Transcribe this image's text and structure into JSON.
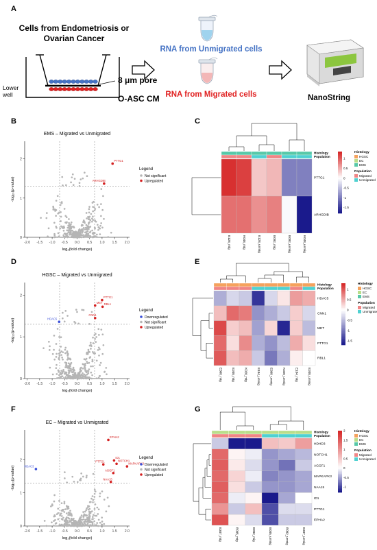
{
  "panel_a": {
    "letter": "A",
    "cells_line1": "Cells from Endometriosis or",
    "cells_line2": "Ovarian Cancer",
    "pore_label": "8 μm pore",
    "lower_well_line1": "Lower",
    "lower_well_line2": "well",
    "cm_label": "O-ASC CM",
    "rna_unmigrated": "RNA from Unmigrated cells",
    "rna_migrated": "RNA from Migrated cells",
    "nanostring_label": "NanoString",
    "colors": {
      "unmigrated": "#4472c4",
      "migrated": "#e02020"
    }
  },
  "volcano_common": {
    "ylabel": "-log₁₀(p-value)",
    "xlabel": "log₂(fold change)",
    "legend_title": "Legend",
    "legend_down": "Downregulated",
    "legend_ns": "Not significant",
    "legend_up": "Upregulated",
    "x_ticks": [
      "-2.0",
      "-1.5",
      "-1.0",
      "-0.5",
      "0.0",
      "0.5",
      "1.0",
      "1.5",
      "2.0"
    ],
    "colors": {
      "down": "#3a4fd8",
      "ns": "#b5b5b5",
      "up": "#d42020"
    }
  },
  "heat_common": {
    "histology_label": "Histology",
    "population_label": "Population",
    "legend_histology_title": "Histology",
    "legend_population_title": "Population",
    "hist_items": [
      "HGSC",
      "EC",
      "EMS"
    ],
    "pop_items": [
      "Migrated",
      "Unmigrated"
    ],
    "colors": {
      "HGSC": "#f5a25d",
      "EC": "#b9de8a",
      "EMS": "#57c8a8",
      "Migrated": "#f08585",
      "Unmigrated": "#4fd1d1",
      "high": "#d62828",
      "mid": "#ffffff",
      "low": "#1a1a8c"
    }
  },
  "panel_b": {
    "letter": "B"
  },
  "panel_c": {
    "letter": "C"
  },
  "panel_d": {
    "letter": "D"
  },
  "panel_e": {
    "letter": "E"
  },
  "panel_f": {
    "letter": "F"
  },
  "panel_g": {
    "letter": "G"
  },
  "chart_data": [
    {
      "type": "scatter",
      "panel": "B",
      "title": "EMS – Migrated vs Unmigrated",
      "xlim": [
        -2.1,
        2.1
      ],
      "ylim": [
        0,
        2.45
      ],
      "y_ticks": [
        0,
        1,
        2
      ],
      "thresholds": {
        "x": [
          -0.7,
          0.7
        ],
        "y": 1.3
      },
      "labeled_points": [
        {
          "label": "PTTG1",
          "x": 1.42,
          "y": 1.88,
          "class": "up"
        },
        {
          "label": "ARHGDIB",
          "x": 1.08,
          "y": 1.37,
          "class": "up"
        }
      ],
      "legend_items": [
        "Not significant",
        "Upregulated"
      ]
    },
    {
      "type": "heatmap",
      "panel": "C",
      "columns": [
        "E128_mig",
        "K048_mig",
        "E128_unmig",
        "E092_mig",
        "E092_unmig",
        "K048_unmig"
      ],
      "histology": [
        "EMS",
        "EMS",
        "EMS",
        "EMS",
        "EMS",
        "EMS"
      ],
      "population": [
        "Migrated",
        "Migrated",
        "Unmigrated",
        "Migrated",
        "Unmigrated",
        "Unmigrated"
      ],
      "rows": [
        "PTTG1",
        "ARHGDIB"
      ],
      "values": [
        [
          1.3,
          1.2,
          0.35,
          0.45,
          -1.0,
          -1.0
        ],
        [
          0.9,
          0.9,
          0.7,
          0.8,
          -0.05,
          -1.8
        ]
      ],
      "scale_ticks": [
        1,
        0.5,
        0,
        -0.5,
        -1,
        -1.5
      ],
      "scale_range": [
        -1.8,
        1.35
      ]
    },
    {
      "type": "scatter",
      "panel": "D",
      "title": "HGSC – Migrated vs Unmigrated",
      "xlim": [
        -2.1,
        2.1
      ],
      "ylim": [
        0,
        2.3
      ],
      "y_ticks": [
        0,
        1,
        2
      ],
      "thresholds": {
        "x": [
          -0.7,
          0.7
        ],
        "y": 1.3
      },
      "labeled_points": [
        {
          "label": "HDAC5",
          "x": -0.72,
          "y": 1.36,
          "class": "down"
        },
        {
          "label": "PTTG1",
          "x": 1.0,
          "y": 1.88,
          "class": "up"
        },
        {
          "label": "MET",
          "x": 0.72,
          "y": 1.75,
          "class": "up"
        },
        {
          "label": "RBL1",
          "x": 1.02,
          "y": 1.72,
          "class": "up"
        },
        {
          "label": "CNN1",
          "x": 0.72,
          "y": 1.45,
          "class": "up"
        }
      ],
      "legend_items": [
        "Downregulated",
        "Not significant",
        "Upregulated"
      ]
    },
    {
      "type": "heatmap",
      "panel": "E",
      "columns": [
        "E308_mig",
        "E208_mig",
        "K020_mig",
        "E184_unmig",
        "E308_unmig",
        "K020_unmig",
        "E184_mig",
        "E208_unmig"
      ],
      "histology": [
        "HGSC",
        "HGSC",
        "HGSC",
        "HGSC",
        "HGSC",
        "HGSC",
        "HGSC",
        "HGSC"
      ],
      "population": [
        "Migrated",
        "Migrated",
        "Migrated",
        "Unmigrated",
        "Unmigrated",
        "Unmigrated",
        "Migrated",
        "Unmigrated"
      ],
      "rows": [
        "HDAC5",
        "CNN1",
        "MET",
        "PTTG1",
        "RBL1"
      ],
      "values": [
        [
          -0.6,
          -0.3,
          -0.4,
          -1.5,
          -0.3,
          0.15,
          0.6,
          0.5
        ],
        [
          0.4,
          0.9,
          0.8,
          -0.8,
          -0.6,
          -0.4,
          0.3,
          -0.3
        ],
        [
          1.1,
          0.3,
          0.4,
          -0.7,
          0.25,
          -1.6,
          0.3,
          -0.5
        ],
        [
          0.9,
          0.2,
          0.7,
          -0.6,
          -0.8,
          -0.5,
          0.5,
          0.2
        ],
        [
          1.0,
          0.4,
          0.5,
          -0.4,
          -1.0,
          -0.6,
          0.1,
          0.0
        ]
      ],
      "scale_ticks": [
        1,
        0.5,
        0,
        -0.5,
        -1,
        -1.5
      ],
      "scale_range": [
        -1.7,
        1.3
      ]
    },
    {
      "type": "scatter",
      "panel": "F",
      "title": "EC – Migrated vs Unmigrated",
      "xlim": [
        -2.1,
        2.1
      ],
      "ylim": [
        0,
        2.9
      ],
      "y_ticks": [
        0,
        1,
        2
      ],
      "thresholds": {
        "x": [
          -0.7,
          0.7
        ],
        "y": 1.3
      },
      "labeled_points": [
        {
          "label": "HDAC3",
          "x": -1.65,
          "y": 1.72,
          "class": "down"
        },
        {
          "label": "EPHA2",
          "x": 1.25,
          "y": 2.6,
          "class": "up"
        },
        {
          "label": "ID1",
          "x": 1.48,
          "y": 1.98,
          "class": "up"
        },
        {
          "label": "NOTCH1",
          "x": 1.58,
          "y": 1.88,
          "class": "up"
        },
        {
          "label": "PTTG1",
          "x": 1.05,
          "y": 1.86,
          "class": "up"
        },
        {
          "label": "MAPKAPK3",
          "x": 2.0,
          "y": 1.8,
          "class": "up"
        },
        {
          "label": "AGGF1",
          "x": 1.45,
          "y": 1.6,
          "class": "up"
        },
        {
          "label": "NAA15",
          "x": 1.35,
          "y": 1.33,
          "class": "up"
        }
      ],
      "legend_items": [
        "Downregulated",
        "Not significant",
        "Upregulated"
      ]
    },
    {
      "type": "heatmap",
      "panel": "G",
      "columns": [
        "E307_mig",
        "E005_mig",
        "E082_mig",
        "E005_unmig",
        "E082_unmig",
        "E307_unmig"
      ],
      "histology": [
        "EC",
        "EC",
        "EC",
        "EC",
        "EC",
        "EC"
      ],
      "population": [
        "Migrated",
        "Migrated",
        "Migrated",
        "Unmigrated",
        "Unmigrated",
        "Unmigrated"
      ],
      "rows": [
        "HDHD3",
        "NOTCH1",
        "AGGF1",
        "MAPKAPK3",
        "NAA15",
        "ID1",
        "PTTG1",
        "EPHA2"
      ],
      "values": [
        [
          -0.3,
          -1.3,
          -1.3,
          0.6,
          0.5,
          0.9
        ],
        [
          1.4,
          0.1,
          -0.1,
          -0.6,
          -0.5,
          -0.4
        ],
        [
          1.5,
          0.2,
          -0.2,
          -0.6,
          -0.8,
          -0.3
        ],
        [
          1.4,
          0.4,
          -0.1,
          -0.7,
          -0.6,
          -0.5
        ],
        [
          1.5,
          0.3,
          -0.3,
          -0.6,
          -0.6,
          -0.5
        ],
        [
          1.4,
          -0.1,
          0.1,
          -1.3,
          -0.5,
          0.0
        ],
        [
          1.0,
          -0.3,
          0.6,
          -1.0,
          -0.2,
          -0.2
        ],
        [
          1.6,
          0.1,
          -0.2,
          -1.0,
          -0.3,
          -0.3
        ]
      ],
      "scale_ticks": [
        2,
        1.5,
        1,
        0.5,
        0,
        -0.5,
        -1
      ],
      "scale_range": [
        -1.3,
        2.0
      ]
    }
  ]
}
